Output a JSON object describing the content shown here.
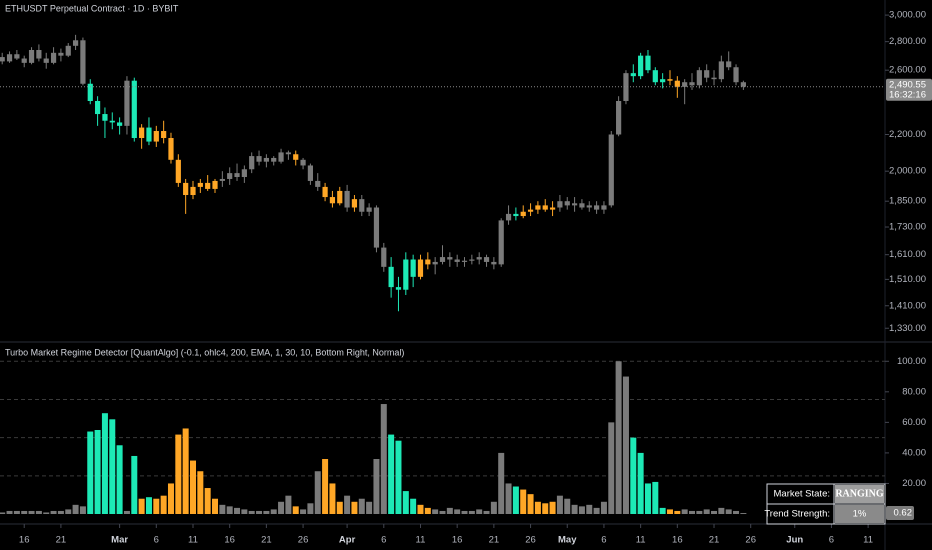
{
  "chart_data": [
    {
      "type": "candlestick",
      "title": "ETHUSDT Perpetual Contract · 1D · BYBIT",
      "log_scale": true,
      "xlim": [
        -0.3,
        120.3
      ],
      "ylim": [
        1290,
        3120
      ],
      "yticks": [
        {
          "value": 3000,
          "label": "3,000.00"
        },
        {
          "value": 2800,
          "label": "2,800.00"
        },
        {
          "value": 2600,
          "label": "2,600.00"
        },
        {
          "value": 2200,
          "label": "2,200.00"
        },
        {
          "value": 2000,
          "label": "2,000.00"
        },
        {
          "value": 1850,
          "label": "1,850.00"
        },
        {
          "value": 1730,
          "label": "1,730.00"
        },
        {
          "value": 1610,
          "label": "1,610.00"
        },
        {
          "value": 1510,
          "label": "1,510.00"
        },
        {
          "value": 1410,
          "label": "1,410.00"
        },
        {
          "value": 1330,
          "label": "1,330.00"
        }
      ],
      "last_price": {
        "value": 2490.55,
        "label": "2,490.55"
      },
      "countdown": "16:32:16",
      "open": [
        2690,
        2660,
        2710,
        2680,
        2650,
        2740,
        2680,
        2650,
        2720,
        2700,
        2770,
        2810,
        2510,
        2400,
        2320,
        2280,
        2270,
        2250,
        2530,
        2180,
        2240,
        2160,
        2220,
        2180,
        2060,
        1940,
        1880,
        1920,
        1940,
        1910,
        1950,
        1960,
        1990,
        1970,
        2010,
        2080,
        2050,
        2070,
        2050,
        2100,
        2090,
        2060,
        2030,
        1950,
        1920,
        1870,
        1840,
        1900,
        1820,
        1860,
        1800,
        1820,
        1640,
        1560,
        1480,
        1470,
        1590,
        1520,
        1590,
        1570,
        1580,
        1600,
        1590,
        1580,
        1585,
        1590,
        1600,
        1580,
        1570,
        1760,
        1790,
        1780,
        1800,
        1810,
        1830,
        1810,
        1820,
        1850,
        1830,
        1840,
        1820,
        1830,
        1810,
        1830,
        2200,
        2400,
        2580,
        2560,
        2700,
        2600,
        2520,
        2540,
        2530,
        2490,
        2520,
        2500,
        2600,
        2550,
        2540,
        2660,
        2620,
        2520
      ],
      "high": [
        2720,
        2730,
        2740,
        2700,
        2760,
        2780,
        2720,
        2760,
        2750,
        2790,
        2850,
        2830,
        2540,
        2430,
        2360,
        2330,
        2300,
        2560,
        2550,
        2260,
        2300,
        2250,
        2280,
        2210,
        2090,
        1960,
        1950,
        1960,
        1980,
        1960,
        2000,
        2020,
        2040,
        2030,
        2100,
        2110,
        2090,
        2080,
        2120,
        2110,
        2110,
        2070,
        2040,
        1990,
        1940,
        1900,
        1920,
        1930,
        1880,
        1880,
        1840,
        1830,
        1660,
        1600,
        1520,
        1620,
        1610,
        1610,
        1620,
        1600,
        1650,
        1620,
        1610,
        1600,
        1610,
        1620,
        1610,
        1600,
        1770,
        1830,
        1820,
        1830,
        1840,
        1850,
        1860,
        1850,
        1880,
        1870,
        1870,
        1860,
        1850,
        1850,
        1850,
        2220,
        2430,
        2600,
        2640,
        2720,
        2740,
        2620,
        2580,
        2600,
        2560,
        2540,
        2580,
        2620,
        2640,
        2600,
        2700,
        2730,
        2640,
        2530
      ],
      "low": [
        2640,
        2650,
        2670,
        2620,
        2640,
        2660,
        2610,
        2640,
        2660,
        2690,
        2740,
        2500,
        2380,
        2250,
        2180,
        2230,
        2200,
        2200,
        2160,
        2120,
        2140,
        2130,
        2150,
        2040,
        1920,
        1790,
        1860,
        1890,
        1900,
        1890,
        1920,
        1930,
        1950,
        1940,
        1990,
        2030,
        2020,
        2030,
        2040,
        2060,
        2030,
        2010,
        1930,
        1900,
        1850,
        1820,
        1830,
        1800,
        1800,
        1780,
        1780,
        1620,
        1540,
        1440,
        1390,
        1450,
        1480,
        1510,
        1550,
        1530,
        1570,
        1560,
        1560,
        1560,
        1570,
        1570,
        1560,
        1550,
        1560,
        1740,
        1760,
        1770,
        1780,
        1790,
        1800,
        1780,
        1800,
        1810,
        1800,
        1810,
        1800,
        1790,
        1790,
        1820,
        2190,
        2380,
        2520,
        2540,
        2580,
        2500,
        2480,
        2500,
        2420,
        2380,
        2470,
        2480,
        2520,
        2500,
        2520,
        2600,
        2500,
        2470
      ],
      "close": [
        2660,
        2710,
        2680,
        2650,
        2740,
        2680,
        2650,
        2720,
        2700,
        2770,
        2810,
        2510,
        2400,
        2320,
        2280,
        2270,
        2250,
        2530,
        2180,
        2240,
        2160,
        2220,
        2180,
        2060,
        1940,
        1880,
        1920,
        1940,
        1910,
        1950,
        1960,
        1990,
        1970,
        2010,
        2080,
        2050,
        2070,
        2050,
        2100,
        2090,
        2060,
        2030,
        1950,
        1920,
        1870,
        1840,
        1900,
        1820,
        1860,
        1800,
        1820,
        1640,
        1560,
        1480,
        1470,
        1590,
        1520,
        1590,
        1570,
        1580,
        1600,
        1590,
        1580,
        1585,
        1590,
        1600,
        1580,
        1570,
        1760,
        1790,
        1780,
        1800,
        1810,
        1830,
        1810,
        1820,
        1850,
        1830,
        1840,
        1820,
        1830,
        1810,
        1830,
        2200,
        2400,
        2580,
        2560,
        2700,
        2600,
        2520,
        2540,
        2530,
        2490,
        2520,
        2500,
        2600,
        2550,
        2540,
        2660,
        2620,
        2520,
        2490.55
      ]
    },
    {
      "type": "bar",
      "title": "Turbo Market Regime Detector [QuantAlgo] (-0.1, ohlc4, 200, EMA, 1, 30, 10, Bottom Right, Normal)",
      "xlim": [
        -0.3,
        120.3
      ],
      "ylim": [
        0,
        110
      ],
      "yticks": [
        {
          "value": 100,
          "label": "100.00"
        },
        {
          "value": 80,
          "label": "80.00"
        },
        {
          "value": 60,
          "label": "60.00"
        },
        {
          "value": 40,
          "label": "40.00"
        },
        {
          "value": 20,
          "label": "20.00"
        }
      ],
      "reference_lines": [
        25,
        50,
        75,
        100
      ],
      "xticks": [
        {
          "value": 3,
          "label": "16"
        },
        {
          "value": 8,
          "label": "21"
        },
        {
          "value": 16,
          "label": "Mar"
        },
        {
          "value": 21,
          "label": "6"
        },
        {
          "value": 26,
          "label": "11"
        },
        {
          "value": 31,
          "label": "16"
        },
        {
          "value": 36,
          "label": "21"
        },
        {
          "value": 41,
          "label": "26"
        },
        {
          "value": 47,
          "label": "Apr"
        },
        {
          "value": 52,
          "label": "6"
        },
        {
          "value": 57,
          "label": "11"
        },
        {
          "value": 62,
          "label": "16"
        },
        {
          "value": 67,
          "label": "21"
        },
        {
          "value": 72,
          "label": "26"
        },
        {
          "value": 77,
          "label": "May"
        },
        {
          "value": 82,
          "label": "6"
        },
        {
          "value": 87,
          "label": "11"
        },
        {
          "value": 92,
          "label": "16"
        },
        {
          "value": 97,
          "label": "21"
        },
        {
          "value": 102,
          "label": "26"
        },
        {
          "value": 108,
          "label": "Jun"
        },
        {
          "value": 113,
          "label": "6"
        },
        {
          "value": 118,
          "label": "11"
        }
      ],
      "palette": {
        "t": "#1de9b6",
        "o": "#ffa726",
        "g": "#7b7b7b"
      },
      "color_codes": "ggggggggggggtttttgtotoooooooooggggggggggogggooogoggggttttoogggggggggggtoooooggggggggggtttttoogggggggggggg",
      "values": [
        1,
        2,
        2,
        2,
        2,
        2,
        1,
        2,
        2,
        3,
        6,
        5,
        54,
        55,
        66,
        62,
        45,
        2,
        38,
        10,
        11,
        10,
        12,
        20,
        52,
        56,
        35,
        28,
        17,
        10,
        6,
        5,
        4,
        3,
        2,
        2,
        2,
        3,
        8,
        12,
        5,
        3,
        7,
        28,
        36,
        20,
        8,
        12,
        8,
        10,
        8,
        36,
        72,
        52,
        48,
        15,
        10,
        6,
        4,
        3,
        2,
        4,
        3,
        2,
        2,
        3,
        2,
        8,
        40,
        20,
        18,
        16,
        13,
        8,
        7,
        8,
        12,
        10,
        6,
        5,
        6,
        4,
        8,
        60,
        100,
        90,
        50,
        40,
        20,
        21,
        4,
        3,
        2,
        3,
        2,
        2,
        3,
        2,
        4,
        3,
        2,
        0.62
      ],
      "table": {
        "state_label": "Market State:",
        "state": "RANGING",
        "strength_label": "Trend Strength:",
        "strength": "1%"
      }
    }
  ]
}
